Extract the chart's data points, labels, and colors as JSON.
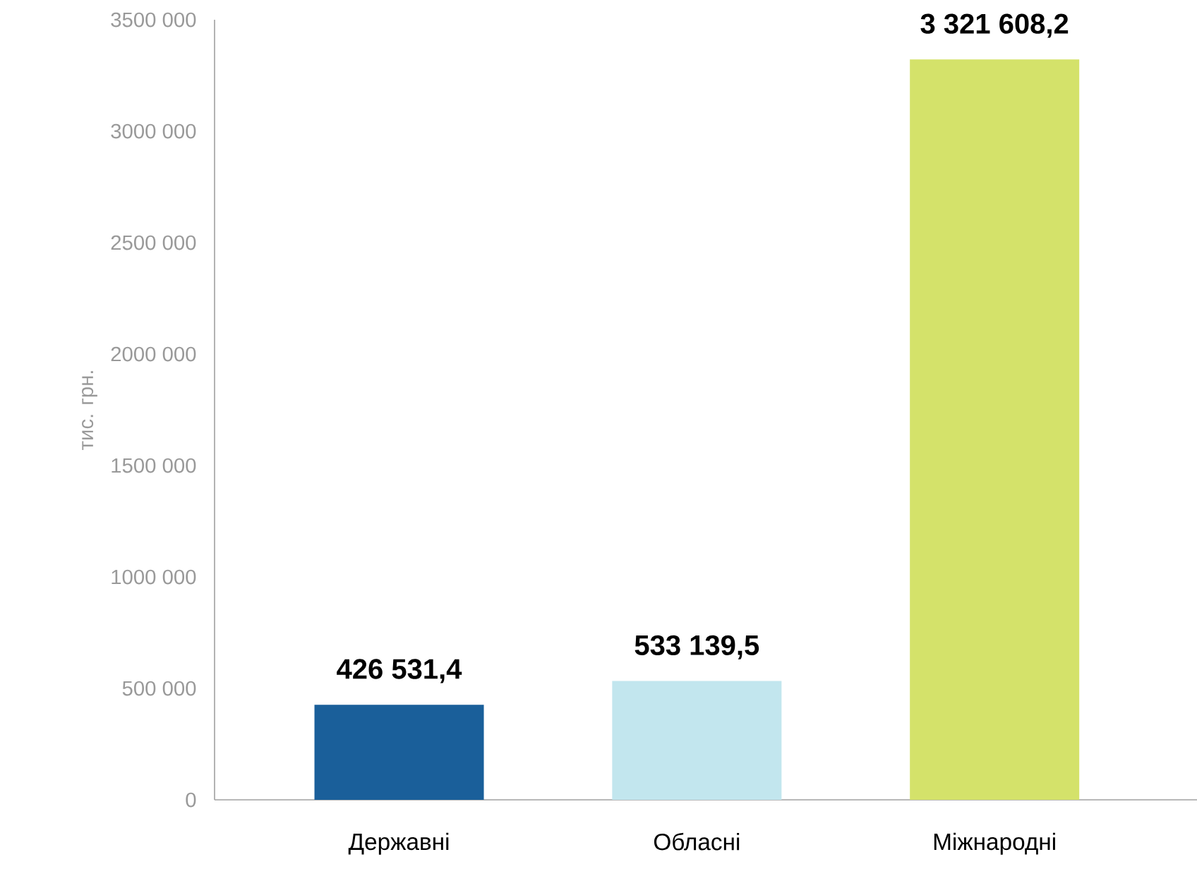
{
  "chart_data": {
    "type": "bar",
    "ylabel": "тис. грн.",
    "categories": [
      "Державні",
      "Обласні",
      "Міжнародні"
    ],
    "values": [
      426531.4,
      533139.5,
      3321608.2
    ],
    "colors": [
      "#1a5f9a",
      "#c2e6ee",
      "#d4e26a"
    ],
    "value_labels": [
      "426 531,4",
      "533 139,5",
      "3 321 608,2"
    ],
    "ylim": [
      0,
      3500000
    ],
    "yticks": [
      {
        "value": 0,
        "label": "0"
      },
      {
        "value": 500000,
        "label": "500 000"
      },
      {
        "value": 1000000,
        "label": "1000 000"
      },
      {
        "value": 1500000,
        "label": "1500 000"
      },
      {
        "value": 2000000,
        "label": "2000 000"
      },
      {
        "value": 2500000,
        "label": "2500 000"
      },
      {
        "value": 3000000,
        "label": "3000 000"
      },
      {
        "value": 3500000,
        "label": "3500 000"
      }
    ],
    "grid": false
  }
}
